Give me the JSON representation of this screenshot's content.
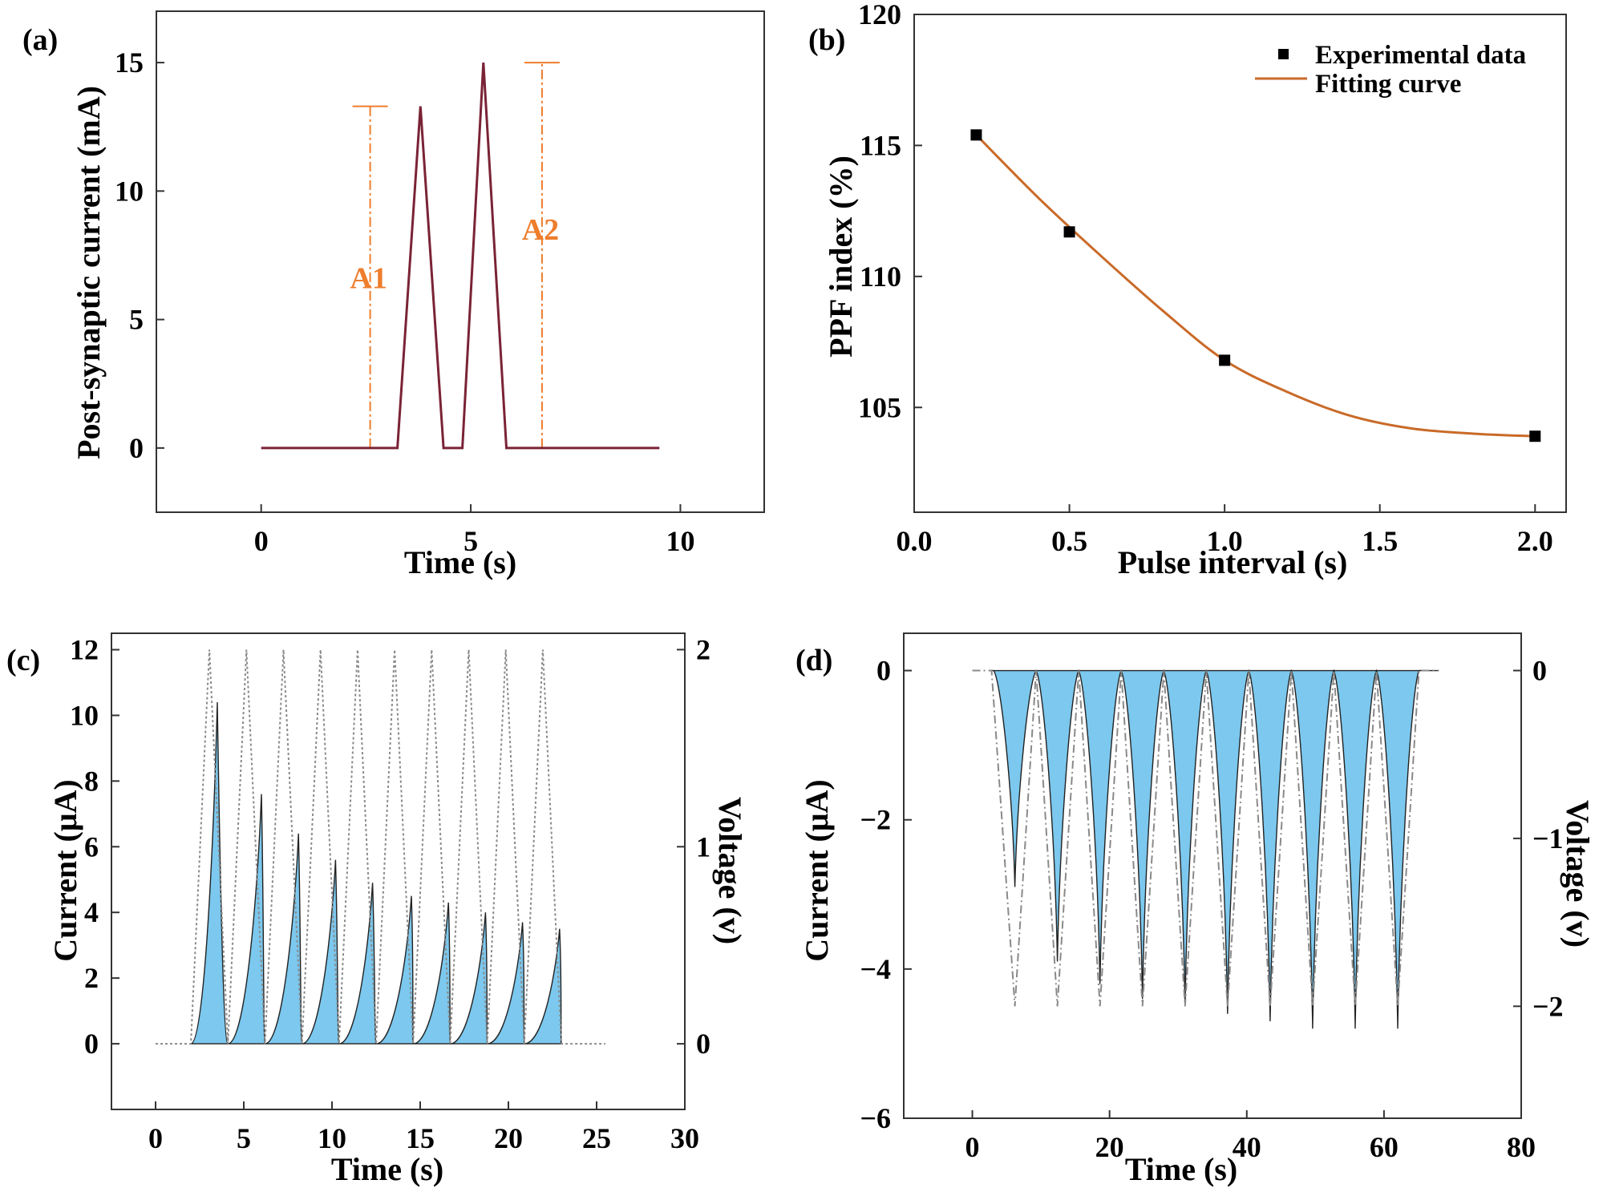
{
  "chart_data": [
    {
      "panel": "(a)",
      "type": "line",
      "title": "",
      "xlabel": "Time (s)",
      "ylabel": "Post-synaptic current (mA)",
      "xlim": [
        -2.5,
        12
      ],
      "ylim": [
        -2.5,
        17
      ],
      "xticks": [
        0,
        5,
        10
      ],
      "yticks": [
        0,
        5,
        10,
        15
      ],
      "series": [
        {
          "name": "current",
          "color": "#7a2336",
          "x": [
            0,
            3.25,
            3.8,
            4.35,
            4.8,
            5.3,
            5.85,
            9.5
          ],
          "y": [
            0,
            0,
            13.3,
            0,
            0,
            15,
            0,
            0
          ]
        }
      ],
      "annotations": [
        {
          "text": "A1",
          "x": 2.6,
          "y_low": 0,
          "y_high": 13.3,
          "color": "#ee7d2c"
        },
        {
          "text": "A2",
          "x": 6.7,
          "y_low": 0,
          "y_high": 15,
          "color": "#ee7d2c"
        }
      ]
    },
    {
      "panel": "(b)",
      "type": "scatter",
      "title": "",
      "xlabel": "Pulse interval (s)",
      "ylabel": "PPF index (%)",
      "xlim": [
        0,
        2.1
      ],
      "ylim": [
        101,
        120
      ],
      "xticks": [
        0.0,
        0.5,
        1.0,
        1.5,
        2.0
      ],
      "xtick_labels": [
        "0.0",
        "0.5",
        "1.0",
        "1.5",
        "2.0"
      ],
      "yticks": [
        105,
        110,
        115,
        120
      ],
      "legend": [
        "Experimental data",
        "Fitting curve"
      ],
      "legend_position": "top-right",
      "series": [
        {
          "name": "Experimental data",
          "x": [
            0.2,
            0.5,
            1.0,
            2.0
          ],
          "y": [
            115.4,
            111.7,
            106.8,
            103.9
          ],
          "color": "#000000"
        },
        {
          "name": "Fitting curve",
          "x": [
            0.2,
            0.4,
            0.6,
            0.8,
            1.0,
            1.2,
            1.4,
            1.6,
            1.8,
            2.0
          ],
          "y": [
            115.4,
            113.0,
            110.8,
            108.7,
            106.8,
            105.6,
            104.7,
            104.2,
            104.0,
            103.9
          ],
          "color": "#c96a28"
        }
      ]
    },
    {
      "panel": "(c)",
      "type": "area",
      "title": "",
      "xlabel": "Time (s)",
      "ylabel": "Current (μA)",
      "ylabel_right": "Voltage (v)",
      "xlim": [
        -2.5,
        30
      ],
      "ylim": [
        -2,
        12.5
      ],
      "ylim_right": [
        -0.333,
        2.083
      ],
      "xticks": [
        0,
        5,
        10,
        15,
        20,
        25,
        30
      ],
      "yticks": [
        0,
        2,
        4,
        6,
        8,
        10,
        12
      ],
      "yticks_right": [
        0,
        1,
        2
      ],
      "pulse_period": 2.1,
      "voltage_peak": 2,
      "voltage_start": 2,
      "current_peak_times": [
        3.5,
        6.0,
        8.1,
        10.2,
        12.3,
        14.5,
        16.6,
        18.7,
        20.8,
        22.9
      ],
      "current_peaks": [
        10.4,
        7.6,
        6.4,
        5.6,
        4.9,
        4.5,
        4.3,
        4.0,
        3.7,
        3.5
      ],
      "fill_color": "#7cc8ee"
    },
    {
      "panel": "(d)",
      "type": "area",
      "title": "",
      "xlabel": "Time (s)",
      "ylabel": "Current (μA)",
      "ylabel_right": "Voltage (v)",
      "xlim": [
        -10,
        80
      ],
      "ylim": [
        -6,
        0.5
      ],
      "ylim_right": [
        -2.667,
        0.222
      ],
      "xticks": [
        0,
        20,
        40,
        60,
        80
      ],
      "yticks": [
        -6,
        -4,
        -2,
        0
      ],
      "ytick_labels": [
        "−6",
        "−4",
        "−2",
        "0"
      ],
      "yticks_right": [
        -2,
        -1,
        0
      ],
      "ytick_labels_right": [
        "−2",
        "−1",
        "0"
      ],
      "current_peak_times": [
        6.2,
        12.4,
        18.6,
        24.8,
        31.0,
        37.2,
        43.4,
        49.6,
        55.8,
        62.0
      ],
      "current_peaks": [
        -2.9,
        -3.9,
        -4.2,
        -4.4,
        -4.5,
        -4.6,
        -4.7,
        -4.8,
        -4.8,
        -4.8
      ],
      "voltage_minimum": -2,
      "fill_color": "#7cc8ee"
    }
  ]
}
